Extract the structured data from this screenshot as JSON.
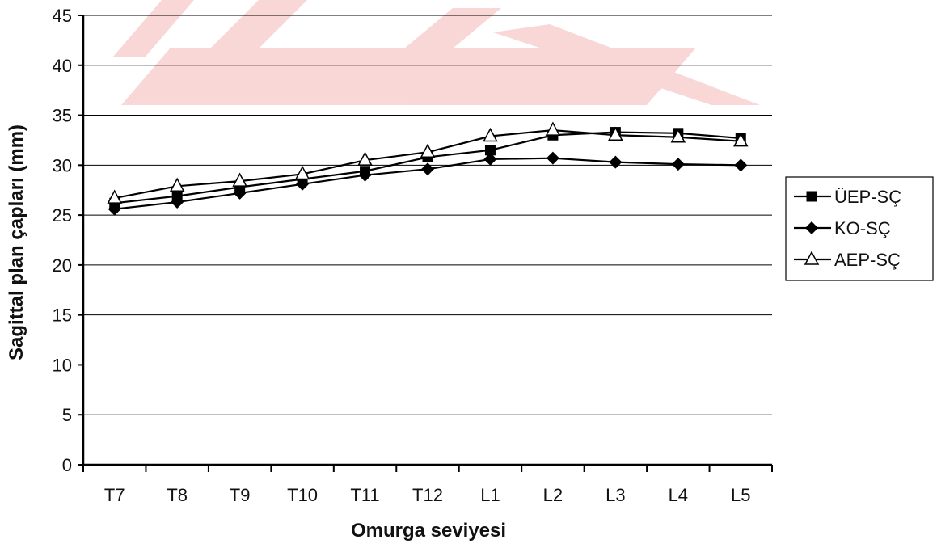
{
  "chart_data": {
    "type": "line",
    "title": "",
    "xlabel": "Omurga seviyesi",
    "ylabel": "Sagittal plan çapları (mm)",
    "categories": [
      "T7",
      "T8",
      "T9",
      "T10",
      "T11",
      "T12",
      "L1",
      "L2",
      "L3",
      "L4",
      "L5"
    ],
    "ylim": [
      0,
      45
    ],
    "yticks": [
      0,
      5,
      10,
      15,
      20,
      25,
      30,
      35,
      40,
      45
    ],
    "grid": "horizontal",
    "legend_position": "right",
    "series": [
      {
        "name": "ÜEP-SÇ",
        "marker": "filled-square",
        "color": "#000000",
        "values": [
          26.2,
          26.9,
          27.8,
          28.6,
          29.4,
          30.8,
          31.5,
          33.0,
          33.3,
          33.2,
          32.7
        ]
      },
      {
        "name": "KO-SÇ",
        "marker": "filled-diamond",
        "color": "#000000",
        "values": [
          25.6,
          26.3,
          27.2,
          28.1,
          29.0,
          29.6,
          30.6,
          30.7,
          30.3,
          30.1,
          30.0
        ]
      },
      {
        "name": "AEP-SÇ",
        "marker": "open-triangle",
        "color": "#000000",
        "values": [
          26.7,
          27.9,
          28.4,
          29.1,
          30.5,
          31.3,
          32.9,
          33.5,
          33.0,
          32.8,
          32.4
        ]
      }
    ]
  }
}
